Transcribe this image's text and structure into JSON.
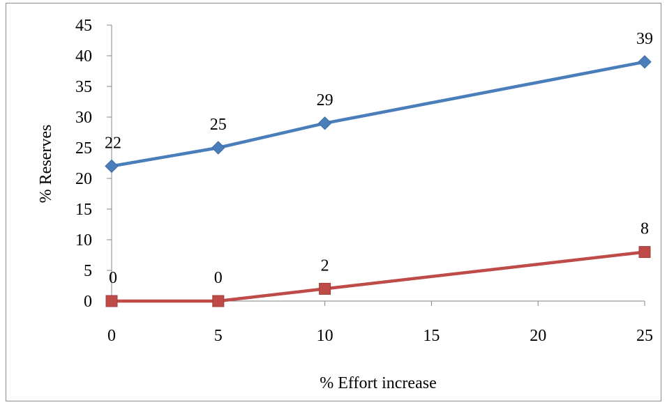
{
  "chart_data": {
    "type": "line",
    "title": "",
    "xlabel": "% Effort increase",
    "ylabel": "% Reserves",
    "x_ticks": [
      0,
      5,
      10,
      15,
      20,
      25
    ],
    "y_ticks": [
      0,
      5,
      10,
      15,
      20,
      25,
      30,
      35,
      40,
      45
    ],
    "xlim": [
      0,
      25
    ],
    "ylim": [
      0,
      45
    ],
    "grid": false,
    "legend": "none",
    "series": [
      {
        "x": [
          0,
          5,
          10,
          25
        ],
        "values": [
          22,
          25,
          29,
          39
        ],
        "color": "#4a7ebb",
        "marker": "diamond"
      },
      {
        "x": [
          0,
          5,
          10,
          25
        ],
        "values": [
          0,
          0,
          2,
          8
        ],
        "color": "#be4b48",
        "marker": "square"
      }
    ]
  }
}
